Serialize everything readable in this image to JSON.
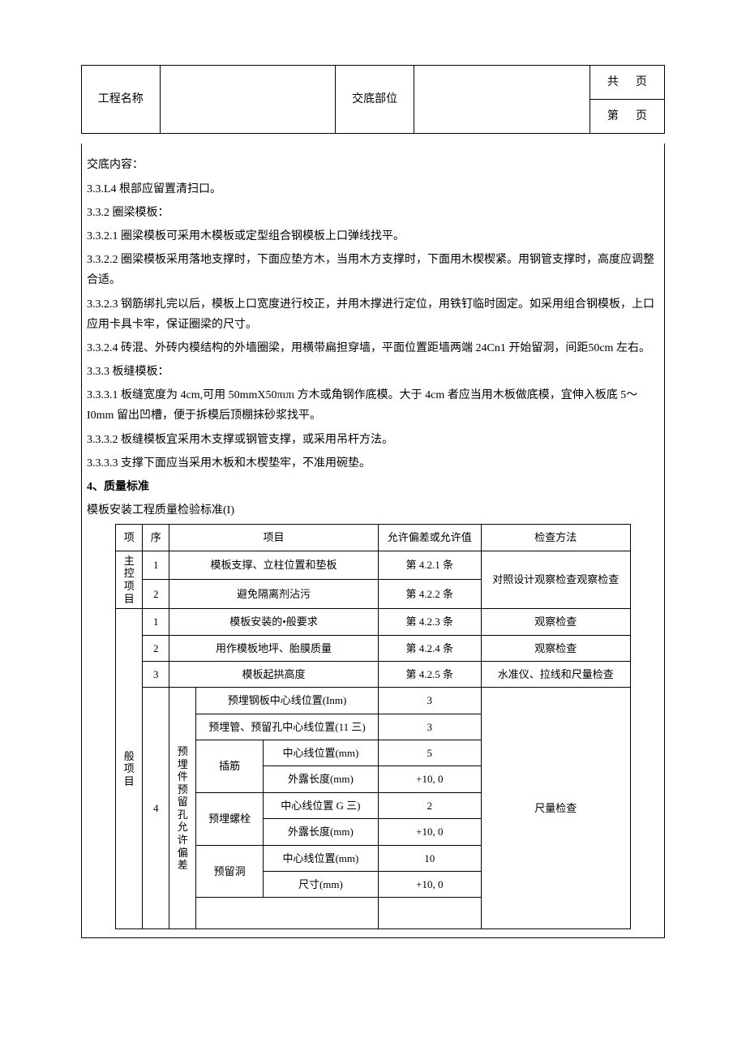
{
  "header": {
    "project_label": "工程名称",
    "project_value": "",
    "location_label": "交底部位",
    "location_value": "",
    "page_total_prefix": "共",
    "page_total_suffix": "页",
    "page_num_prefix": "第",
    "page_num_suffix": "页"
  },
  "content": {
    "title": "交底内容：",
    "lines": [
      "3.3.L4 根部应留置清扫口。",
      "3.3.2 圈梁模板：",
      "3.3.2.1 圈梁模板可采用木模板或定型组合钢模板上口弹线找平。",
      "3.3.2.2 圈梁模板采用落地支撑时，下面应垫方木，当用木方支撑时，下面用木楔楔紧。用钢管支撑时，高度应调整合适。",
      "3.3.2.3 钢筋绑扎完以后，模板上口宽度进行校正，并用木撑进行定位，用铁钉临时固定。如采用组合钢模板，上口应用卡具卡牢，保证圈梁的尺寸。",
      "3.3.2.4 砖混、外砖内模结构的外墙圈梁，用横带扁担穿墙，平面位置距墙两端 24Cn1 开始留洞，间距50cm 左右。",
      "3.3.3 板缝模板：",
      "3.3.3.1 板缝宽度为 4cm,可用 50mmX50πιπι 方木或角钢作底模。大于 4cm 者应当用木板做底模，宜伸入板底 5～I0mm 留出凹槽，便于拆模后顶棚抹砂浆找平。",
      "3.3.3.2 板缝模板宜采用木支撑或钢管支撑，或采用吊杆方法。",
      "3.3.3.3 支撑下面应当采用木板和木楔垫牢，不准用碗垫。"
    ],
    "section4": "4、质量标准",
    "table_caption": "模板安装工程质量检验标准(I)"
  },
  "std_table": {
    "headers": {
      "col_group": "项",
      "col_seq": "序",
      "col_item": "项目",
      "col_tol": "允许偏差或允许值",
      "col_method": "检查方法"
    },
    "group1_label": "主控项目",
    "group2_label": "般项目",
    "embed_label": "预埋件预留孔允许偏差",
    "rows_main": [
      {
        "seq": "1",
        "item": "模板支撑、立柱位置和垫板",
        "tol": "第 4.2.1 条",
        "method": "对照设计观察检查观察检查"
      },
      {
        "seq": "2",
        "item": "避免隔离剂沾污",
        "tol": "第 4.2.2 条",
        "method": ""
      }
    ],
    "rows_general": [
      {
        "seq": "1",
        "item": "模板安装的•般要求",
        "tol": "第 4.2.3 条",
        "method": "观察检查"
      },
      {
        "seq": "2",
        "item": "用作模板地坪、胎膜质量",
        "tol": "第 4.2.4 条",
        "method": "观察检查"
      },
      {
        "seq": "3",
        "item": "模板起拱高度",
        "tol": "第 4.2.5 条",
        "method": "水准仪、拉线和尺量检查"
      }
    ],
    "row4_seq": "4",
    "row4_method": "尺量检查",
    "embed_rows": [
      {
        "sub": "",
        "label": "预埋钢板中心线位置(Inm)",
        "tol": "3"
      },
      {
        "sub": "",
        "label": "预埋管、预留孔中心线位置(11 三)",
        "tol": "3"
      },
      {
        "sub": "插筋",
        "label": "中心线位置(mm)",
        "tol": "5"
      },
      {
        "sub": "",
        "label": "外露长度(mm)",
        "tol": "+10, 0"
      },
      {
        "sub": "预埋螺栓",
        "label": "中心线位置 G 三)",
        "tol": "2"
      },
      {
        "sub": "",
        "label": "外露长度(mm)",
        "tol": "+10, 0"
      },
      {
        "sub": "预留洞",
        "label": "中心线位置(mm)",
        "tol": "10"
      },
      {
        "sub": "",
        "label": "尺寸(mm)",
        "tol": "+10, 0"
      }
    ]
  }
}
